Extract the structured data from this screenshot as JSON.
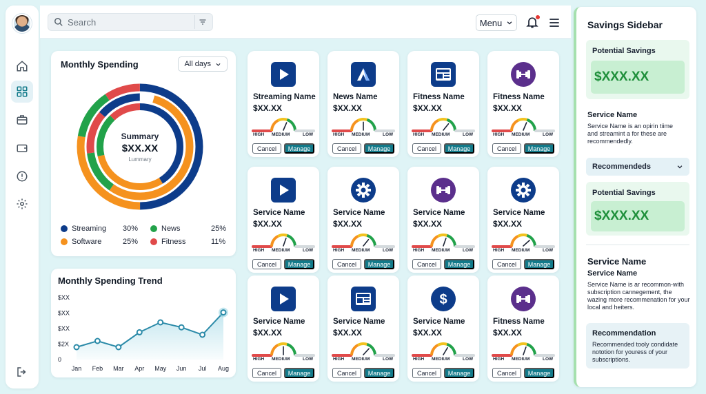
{
  "search": {
    "placeholder": "Search"
  },
  "header": {
    "menu_label": "Menu"
  },
  "monthly_spending": {
    "title": "Monthly Spending",
    "period": "All days",
    "summary_title": "Summary",
    "summary_value": "$XX.XX",
    "summary_sub": "Lummary",
    "legend": [
      {
        "name": "Streaming",
        "pct": "30%",
        "color": "#0d3c8a"
      },
      {
        "name": "News",
        "pct": "25%",
        "color": "#22a24a"
      },
      {
        "name": "Software",
        "pct": "25%",
        "color": "#f5921e"
      },
      {
        "name": "Fitness",
        "pct": "11%",
        "color": "#e04a4a"
      }
    ]
  },
  "chart_data": {
    "type": "line",
    "title": "Monthly Spending Trend",
    "categories": [
      "Jan",
      "Feb",
      "Mar",
      "Apr",
      "May",
      "Jun",
      "Jul",
      "Aug"
    ],
    "values": [
      2,
      3,
      2,
      4.4,
      6,
      5.2,
      4,
      7.6
    ],
    "y_tick_labels": [
      "$XX",
      "$XX",
      "$XX",
      "$2X",
      "0"
    ],
    "ylim": [
      0,
      10
    ],
    "grid": false,
    "line_color": "#2a8aa8"
  },
  "services": [
    {
      "name": "Streaming Name",
      "price": "$XX.XX",
      "icon": "play-icon",
      "color": "#0d3c8a",
      "level": 0.62
    },
    {
      "name": "News Name",
      "price": "$XX.XX",
      "icon": "a-logo-icon",
      "color": "#0d3c8a",
      "level": 0.5
    },
    {
      "name": "Fitness Name",
      "price": "$XX.XX",
      "icon": "newspaper-icon",
      "color": "#0d3c8a",
      "level": 0.7
    },
    {
      "name": "Fitness Name",
      "price": "$XX.XX",
      "icon": "dumbbell-icon",
      "color": "#5b2f8c",
      "level": 0.62
    },
    {
      "name": "Service Name",
      "price": "$XX.XX",
      "icon": "play-icon",
      "color": "#0d3c8a",
      "level": 0.6
    },
    {
      "name": "Service Name",
      "price": "$XX.XX",
      "icon": "gear-icon",
      "color": "#0d3c8a",
      "level": 0.7
    },
    {
      "name": "Service Name",
      "price": "$XX.XX",
      "icon": "dumbbell-icon",
      "color": "#5b2f8c",
      "level": 0.6
    },
    {
      "name": "Service Name",
      "price": "$XX.XX",
      "icon": "gear-icon",
      "color": "#0d3c8a",
      "level": 0.75
    },
    {
      "name": "Service Name",
      "price": "$XX.XX",
      "icon": "play-icon",
      "color": "#0d3c8a",
      "level": 0.5
    },
    {
      "name": "Service Name",
      "price": "$XX.XX",
      "icon": "newspaper-icon",
      "color": "#0d3c8a",
      "level": 0.72
    },
    {
      "name": "Service Name",
      "price": "$XX.XX",
      "icon": "dollar-icon",
      "color": "#0d3c8a",
      "level": 0.66
    },
    {
      "name": "Fitness Name",
      "price": "$XX.XX",
      "icon": "dumbbell-icon",
      "color": "#5b2f8c",
      "level": 0.6
    }
  ],
  "gauge_labels": {
    "high": "HIGH",
    "medium": "MEDIUM",
    "low": "LOW"
  },
  "service_buttons": {
    "cancel": "Cancel",
    "manage": "Manage"
  },
  "sidebar": {
    "title": "Savings Sidebar",
    "potential_label": "Potential Savings",
    "potential_value": "$XXX.XX",
    "service_name": "Service Name",
    "service_text": "Service Name is an opirin tiime and streamint a for these are recommendedly.",
    "recommendeds_label": "Recommendeds",
    "potential_label_2": "Potential Savings",
    "potential_value_2": "$XXX.XX",
    "service_heading": "Service Name",
    "service_subheading": "Service Name",
    "service_text_2": "Service Name is ar recommon-with subscription cannegement, the wazing more recommenation for your local and heiters.",
    "recommendation_title": "Recommendation",
    "recommendation_text": "Recommended tooly condidate nototion for youress of your subscriptions."
  }
}
